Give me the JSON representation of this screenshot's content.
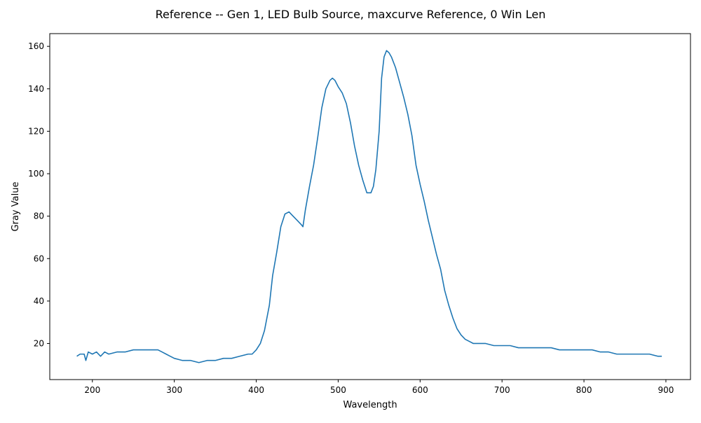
{
  "chart_data": {
    "type": "line",
    "title": "Reference -- Gen 1, LED Bulb Source, maxcurve Reference, 0 Win Len",
    "xlabel": "Wavelength",
    "ylabel": "Gray Value",
    "xlim": [
      148,
      930
    ],
    "ylim": [
      3,
      166
    ],
    "xticks": [
      200,
      300,
      400,
      500,
      600,
      700,
      800,
      900
    ],
    "yticks": [
      20,
      40,
      60,
      80,
      100,
      120,
      140,
      160
    ],
    "grid": false,
    "legend": "none",
    "series": [
      {
        "color": "#1f77b4",
        "x": [
          181,
          185,
          190,
          192,
          195,
          200,
          205,
          210,
          215,
          220,
          230,
          240,
          250,
          260,
          270,
          280,
          285,
          290,
          295,
          300,
          310,
          320,
          330,
          340,
          350,
          360,
          370,
          380,
          390,
          395,
          400,
          405,
          410,
          413,
          416,
          420,
          425,
          430,
          435,
          440,
          445,
          450,
          455,
          457,
          460,
          465,
          470,
          475,
          480,
          485,
          490,
          493,
          496,
          500,
          505,
          510,
          515,
          520,
          525,
          530,
          535,
          540,
          543,
          546,
          550,
          553,
          556,
          559,
          562,
          565,
          570,
          575,
          580,
          585,
          590,
          595,
          600,
          605,
          610,
          615,
          620,
          625,
          630,
          635,
          640,
          645,
          650,
          655,
          660,
          665,
          670,
          680,
          690,
          700,
          710,
          720,
          730,
          740,
          750,
          760,
          770,
          780,
          790,
          800,
          810,
          820,
          830,
          840,
          850,
          860,
          870,
          880,
          890,
          895
        ],
        "y": [
          14,
          15,
          15,
          12,
          16,
          15,
          16,
          14,
          16,
          15,
          16,
          16,
          17,
          17,
          17,
          17,
          16,
          15,
          14,
          13,
          12,
          12,
          11,
          12,
          12,
          13,
          13,
          14,
          15,
          15,
          17,
          20,
          26,
          32,
          38,
          52,
          63,
          75,
          81,
          82,
          80,
          78,
          76,
          75,
          83,
          94,
          104,
          117,
          131,
          140,
          144,
          145,
          144,
          141,
          138,
          133,
          124,
          113,
          104,
          97,
          91,
          91,
          94,
          102,
          120,
          145,
          155,
          158,
          157,
          155,
          150,
          143,
          136,
          128,
          118,
          104,
          95,
          87,
          78,
          70,
          62,
          55,
          45,
          38,
          32,
          27,
          24,
          22,
          21,
          20,
          20,
          20,
          19,
          19,
          19,
          18,
          18,
          18,
          18,
          18,
          17,
          17,
          17,
          17,
          17,
          16,
          16,
          15,
          15,
          15,
          15,
          15,
          14,
          14
        ]
      }
    ]
  }
}
